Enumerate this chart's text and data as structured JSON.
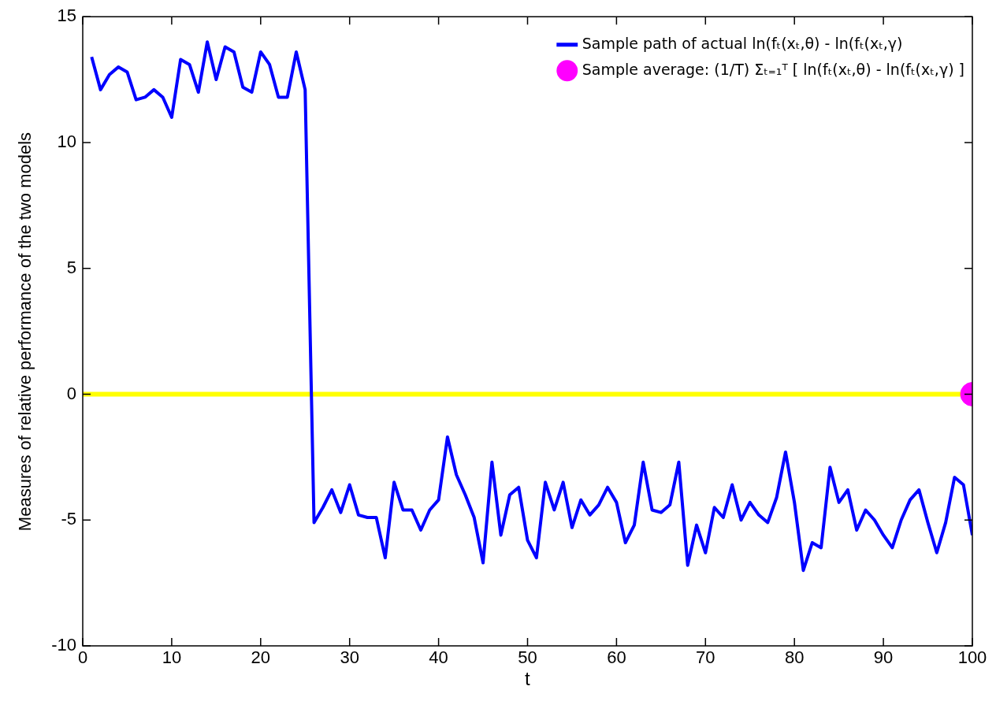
{
  "chart_data": {
    "type": "line",
    "xlabel": "t",
    "ylabel": "Measures of relative performance of the two models",
    "xlim": [
      0,
      100
    ],
    "xticks": [
      0,
      10,
      20,
      30,
      40,
      50,
      60,
      70,
      80,
      90,
      100
    ],
    "ylim": [
      -10,
      15
    ],
    "yticks": [
      -10,
      -5,
      0,
      5,
      10,
      15
    ],
    "grid": false,
    "legend": "top right",
    "ref_lines": [
      {
        "axis": "y",
        "value": 0,
        "color": "#ffff00"
      }
    ],
    "series": [
      {
        "name": "Sample path of actual ln(fₜ(xₜ,θ) - ln(fₜ(xₜ,γ)",
        "color": "#0000ff",
        "marker": "none",
        "x": [
          1,
          2,
          3,
          4,
          5,
          6,
          7,
          8,
          9,
          10,
          11,
          12,
          13,
          14,
          15,
          16,
          17,
          18,
          19,
          20,
          21,
          22,
          23,
          24,
          25,
          26,
          27,
          28,
          29,
          30,
          31,
          32,
          33,
          34,
          35,
          36,
          37,
          38,
          39,
          40,
          41,
          42,
          43,
          44,
          45,
          46,
          47,
          48,
          49,
          50,
          51,
          52,
          53,
          54,
          55,
          56,
          57,
          58,
          59,
          60,
          61,
          62,
          63,
          64,
          65,
          66,
          67,
          68,
          69,
          70,
          71,
          72,
          73,
          74,
          75,
          76,
          77,
          78,
          79,
          80,
          81,
          82,
          83,
          84,
          85,
          86,
          87,
          88,
          89,
          90,
          91,
          92,
          93,
          94,
          95,
          96,
          97,
          98,
          99,
          100
        ],
        "values": [
          13.4,
          12.1,
          12.7,
          13.0,
          12.8,
          11.7,
          11.8,
          12.1,
          11.8,
          11.0,
          13.3,
          13.1,
          12.0,
          14.0,
          12.5,
          13.8,
          13.6,
          12.2,
          12.0,
          13.6,
          13.1,
          11.8,
          11.8,
          13.6,
          12.1,
          -5.1,
          -4.5,
          -3.8,
          -4.7,
          -3.6,
          -4.8,
          -4.9,
          -4.9,
          -6.5,
          -3.5,
          -4.6,
          -4.6,
          -5.4,
          -4.6,
          -4.2,
          -1.7,
          -3.2,
          -4.0,
          -4.9,
          -6.7,
          -2.7,
          -5.6,
          -4.0,
          -3.7,
          -5.8,
          -6.5,
          -3.5,
          -4.6,
          -3.5,
          -5.3,
          -4.2,
          -4.8,
          -4.4,
          -3.7,
          -4.3,
          -5.9,
          -5.2,
          -2.7,
          -4.6,
          -4.7,
          -4.4,
          -2.7,
          -6.8,
          -5.2,
          -6.3,
          -4.5,
          -4.9,
          -3.6,
          -5.0,
          -4.3,
          -4.8,
          -5.1,
          -4.1,
          -2.3,
          -4.3,
          -7.0,
          -5.9,
          -6.1,
          -2.9,
          -4.3,
          -3.8,
          -5.4,
          -4.6,
          -5.0,
          -5.6,
          -6.1,
          -5.0,
          -4.2,
          -3.8,
          -5.1,
          -6.3,
          -5.1,
          -3.3,
          -3.6,
          -5.6
        ]
      },
      {
        "name": "Sample average: (1/T) Σₜ₌₁ᵀ [ ln(fₜ(xₜ,θ) - ln(fₜ(xₜ,γ) ]",
        "type": "scatter",
        "color": "#ff00ff",
        "marker": "circle",
        "x": [
          100
        ],
        "values": [
          0
        ]
      }
    ]
  }
}
